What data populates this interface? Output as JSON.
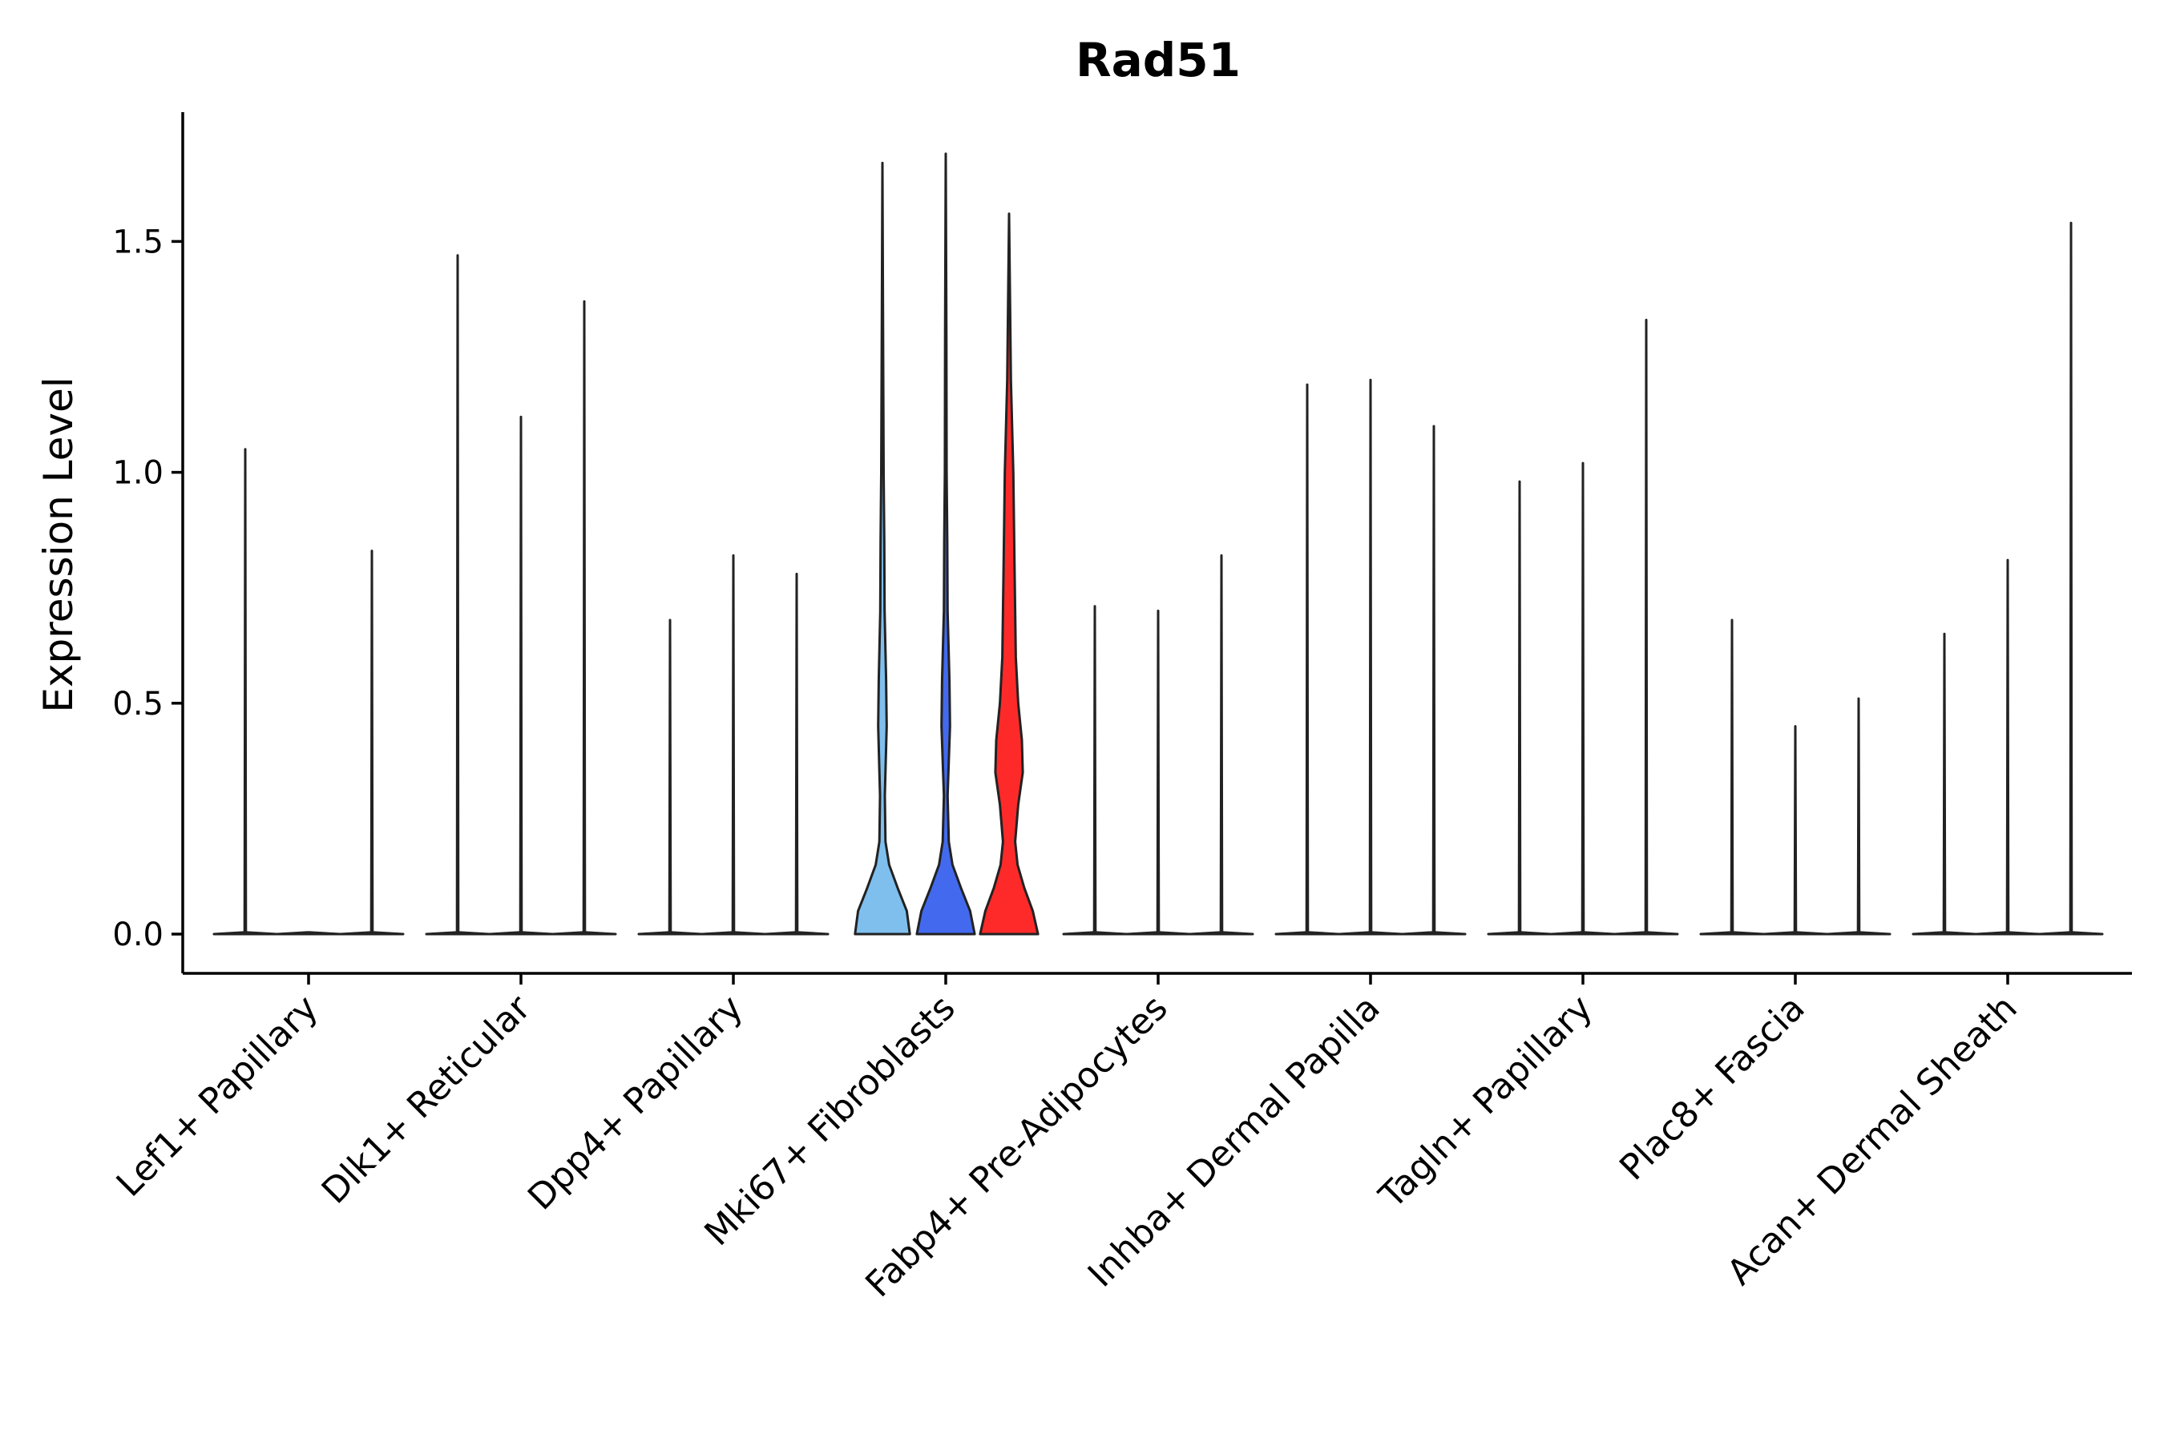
{
  "chart_data": {
    "type": "violin",
    "title": "Rad51",
    "xlabel": "",
    "ylabel": "Expression Level",
    "ylim": [
      -0.085,
      1.78
    ],
    "yticks": [
      0.0,
      0.5,
      1.0,
      1.5
    ],
    "ytick_labels": [
      "0.0",
      "0.5",
      "1.0",
      "1.5"
    ],
    "grid": false,
    "legend": "none",
    "categories": [
      "Lef1+ Papillary",
      "Dlk1+ Reticular",
      "Dpp4+ Papillary",
      "Mki67+ Fibroblasts",
      "Fabp4+ Pre-Adipocytes",
      "Inhba+ Dermal Papilla",
      "Tagln+ Papillary",
      "Plac8+ Fascia",
      "Acan+ Dermal Sheath"
    ],
    "series": [
      {
        "color": "#7fbfee",
        "max_values": [
          1.05,
          1.47,
          0.68,
          1.67,
          0.71,
          1.19,
          0.98,
          0.68,
          0.65
        ]
      },
      {
        "color": "#436aee",
        "max_values": [
          0.0,
          1.12,
          0.82,
          1.69,
          0.7,
          1.2,
          1.02,
          0.45,
          0.81
        ]
      },
      {
        "color": "#fe2a2a",
        "max_values": [
          0.83,
          1.37,
          0.78,
          1.56,
          0.82,
          1.1,
          1.33,
          0.51,
          1.54
        ]
      }
    ],
    "mki67_density": [
      {
        "series": 0,
        "profile": [
          [
            0.0,
            0.9
          ],
          [
            0.05,
            0.8
          ],
          [
            0.1,
            0.5
          ],
          [
            0.15,
            0.22
          ],
          [
            0.2,
            0.1
          ],
          [
            0.3,
            0.08
          ],
          [
            0.45,
            0.14
          ],
          [
            0.55,
            0.12
          ],
          [
            0.7,
            0.07
          ],
          [
            0.85,
            0.06
          ],
          [
            1.0,
            0.04
          ],
          [
            1.3,
            0.02
          ],
          [
            1.67,
            0.0
          ]
        ]
      },
      {
        "series": 1,
        "profile": [
          [
            0.0,
            0.95
          ],
          [
            0.05,
            0.8
          ],
          [
            0.1,
            0.5
          ],
          [
            0.15,
            0.22
          ],
          [
            0.2,
            0.1
          ],
          [
            0.3,
            0.06
          ],
          [
            0.45,
            0.14
          ],
          [
            0.55,
            0.12
          ],
          [
            0.7,
            0.06
          ],
          [
            0.85,
            0.05
          ],
          [
            1.0,
            0.03
          ],
          [
            1.3,
            0.02
          ],
          [
            1.69,
            0.0
          ]
        ]
      },
      {
        "series": 2,
        "profile": [
          [
            0.0,
            0.95
          ],
          [
            0.05,
            0.78
          ],
          [
            0.1,
            0.5
          ],
          [
            0.15,
            0.28
          ],
          [
            0.2,
            0.2
          ],
          [
            0.28,
            0.3
          ],
          [
            0.35,
            0.45
          ],
          [
            0.42,
            0.42
          ],
          [
            0.5,
            0.3
          ],
          [
            0.6,
            0.22
          ],
          [
            0.8,
            0.18
          ],
          [
            1.0,
            0.14
          ],
          [
            1.2,
            0.06
          ],
          [
            1.56,
            0.0
          ]
        ]
      }
    ]
  }
}
